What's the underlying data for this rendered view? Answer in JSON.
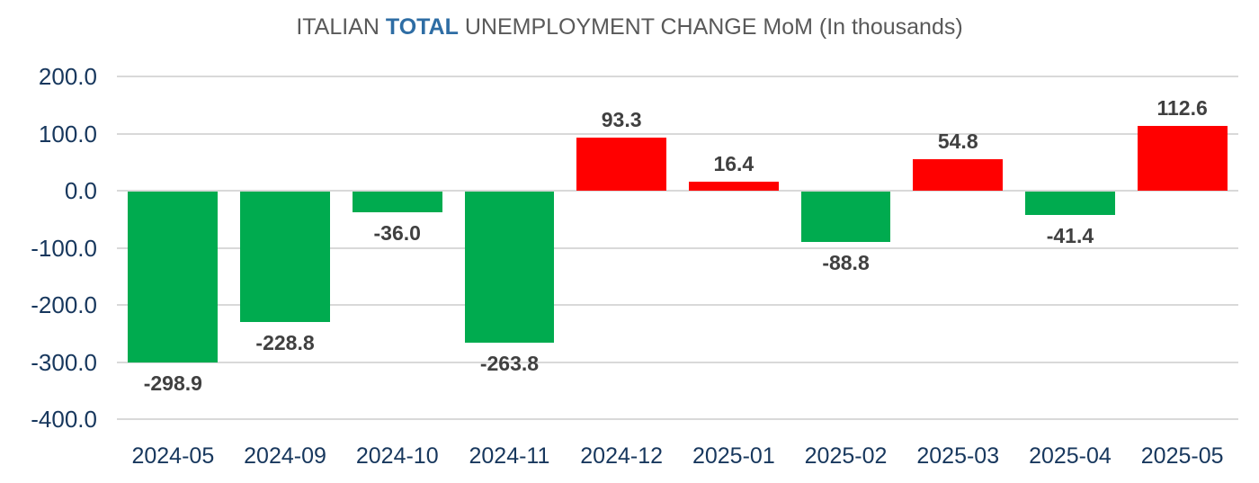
{
  "title": {
    "prefix": "ITALIAN ",
    "highlight": "TOTAL",
    "suffix": " UNEMPLOYMENT CHANGE MoM (In thousands)"
  },
  "chart_data": {
    "type": "bar",
    "title": "ITALIAN TOTAL UNEMPLOYMENT CHANGE MoM (In thousands)",
    "categories": [
      "2024-05",
      "2024-09",
      "2024-10",
      "2024-11",
      "2024-12",
      "2025-01",
      "2025-02",
      "2025-03",
      "2025-04",
      "2025-05"
    ],
    "values": [
      -298.9,
      -228.8,
      -36.0,
      -263.8,
      93.3,
      16.4,
      -88.8,
      54.8,
      -41.4,
      112.6
    ],
    "data_labels": [
      "-298.9",
      "-228.8",
      "-36.0",
      "-263.8",
      "93.3",
      "16.4",
      "-88.8",
      "54.8",
      "-41.4",
      "112.6"
    ],
    "xlabel": "",
    "ylabel": "",
    "ylim": [
      -400,
      200
    ],
    "ytick_interval": 100,
    "ytick_labels": [
      "200.0",
      "100.0",
      "0.0",
      "-100.0",
      "-200.0",
      "-300.0",
      "-400.0"
    ],
    "grid": true,
    "legend": false,
    "colors": {
      "positive_bar": "#FF0000",
      "negative_bar": "#00AB4F",
      "axis_label": "#17375D",
      "data_label": "#404040",
      "gridline": "#D9D9D9",
      "title_text": "#595959",
      "title_highlight": "#2E6DA4"
    }
  }
}
